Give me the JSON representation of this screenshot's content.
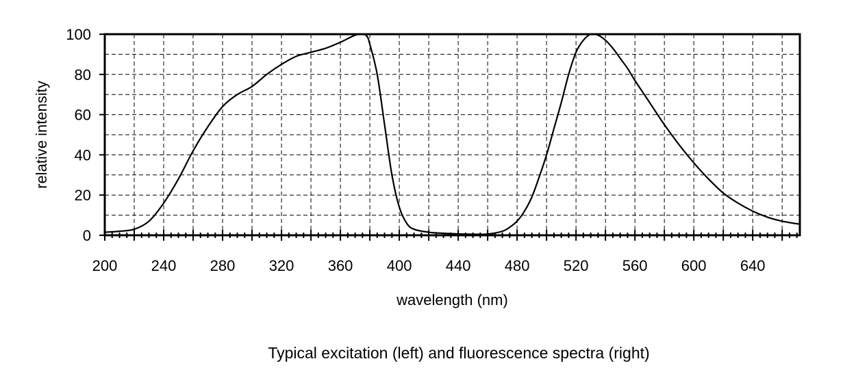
{
  "chart_data": {
    "type": "line",
    "title": "",
    "caption": "Typical excitation (left) and fluorescence spectra (right)",
    "xlabel": "wavelength (nm)",
    "ylabel": "relative intensity",
    "xlim": [
      200,
      672
    ],
    "ylim": [
      0,
      100
    ],
    "x_ticks": [
      200,
      240,
      280,
      320,
      360,
      400,
      440,
      480,
      520,
      560,
      600,
      640
    ],
    "y_ticks": [
      0,
      20,
      40,
      60,
      80,
      100
    ],
    "grid": true,
    "legend": "none",
    "series": [
      {
        "x": [
          200,
          210,
          220,
          230,
          240,
          250,
          260,
          270,
          280,
          290,
          300,
          310,
          320,
          330,
          340,
          350,
          360,
          370,
          375,
          378,
          380,
          385,
          390,
          395,
          400,
          405,
          410,
          420,
          430,
          440,
          450,
          460
        ],
        "y": [
          1.5,
          2,
          3,
          7,
          16,
          28,
          42,
          54,
          64,
          70,
          74,
          80,
          85,
          89,
          91,
          93,
          96,
          99.5,
          100,
          99,
          95,
          80,
          55,
          30,
          14,
          6,
          3,
          1.5,
          1,
          0.7,
          0.5,
          0.5
        ]
      },
      {
        "x": [
          440,
          450,
          460,
          470,
          475,
          480,
          485,
          490,
          495,
          500,
          505,
          510,
          515,
          520,
          525,
          530,
          535,
          540,
          545,
          550,
          555,
          560,
          570,
          580,
          590,
          600,
          610,
          620,
          630,
          640,
          650,
          660,
          672
        ],
        "y": [
          0.5,
          0.4,
          0.6,
          2,
          4,
          7,
          12,
          19,
          29,
          40,
          53,
          66,
          80,
          91,
          97,
          100,
          99.5,
          97,
          93,
          88,
          83,
          77,
          66,
          55,
          45,
          36,
          28,
          21,
          16,
          12,
          9,
          7,
          5.5
        ]
      }
    ]
  }
}
